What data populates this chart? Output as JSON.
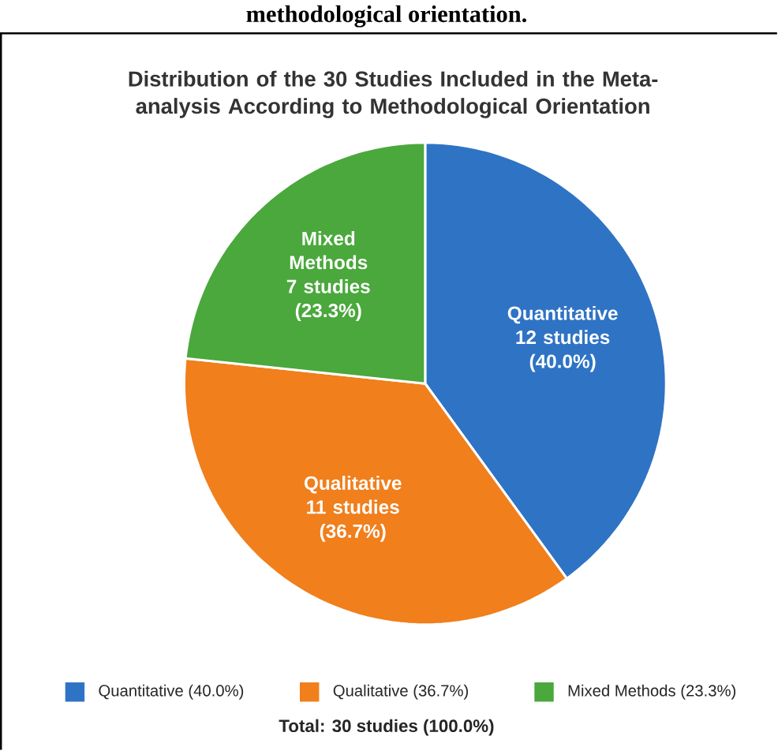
{
  "chart_data": {
    "type": "pie",
    "title": "Distribution of the 30 Studies Included in the Meta-analysis According to Methodological Orientation",
    "categories": [
      "Quantitative (40.0%)",
      "Qualitative (36.7%)",
      "Mixed Methods (23.3%)"
    ],
    "values": [
      12,
      11,
      7
    ],
    "value_labels": [
      "Quantitative 12 studies (40.0%)",
      "Qualitative 11 studies (36.7%)",
      "Mixed Methods 7 studies (23.3%)"
    ],
    "colors": [
      "#2f73c4",
      "#f07f1c",
      "#4aa83c"
    ],
    "legend": "bottom",
    "annotations": [
      "methodological orientation.",
      "Total: 30 studies (100.0%)"
    ]
  }
}
